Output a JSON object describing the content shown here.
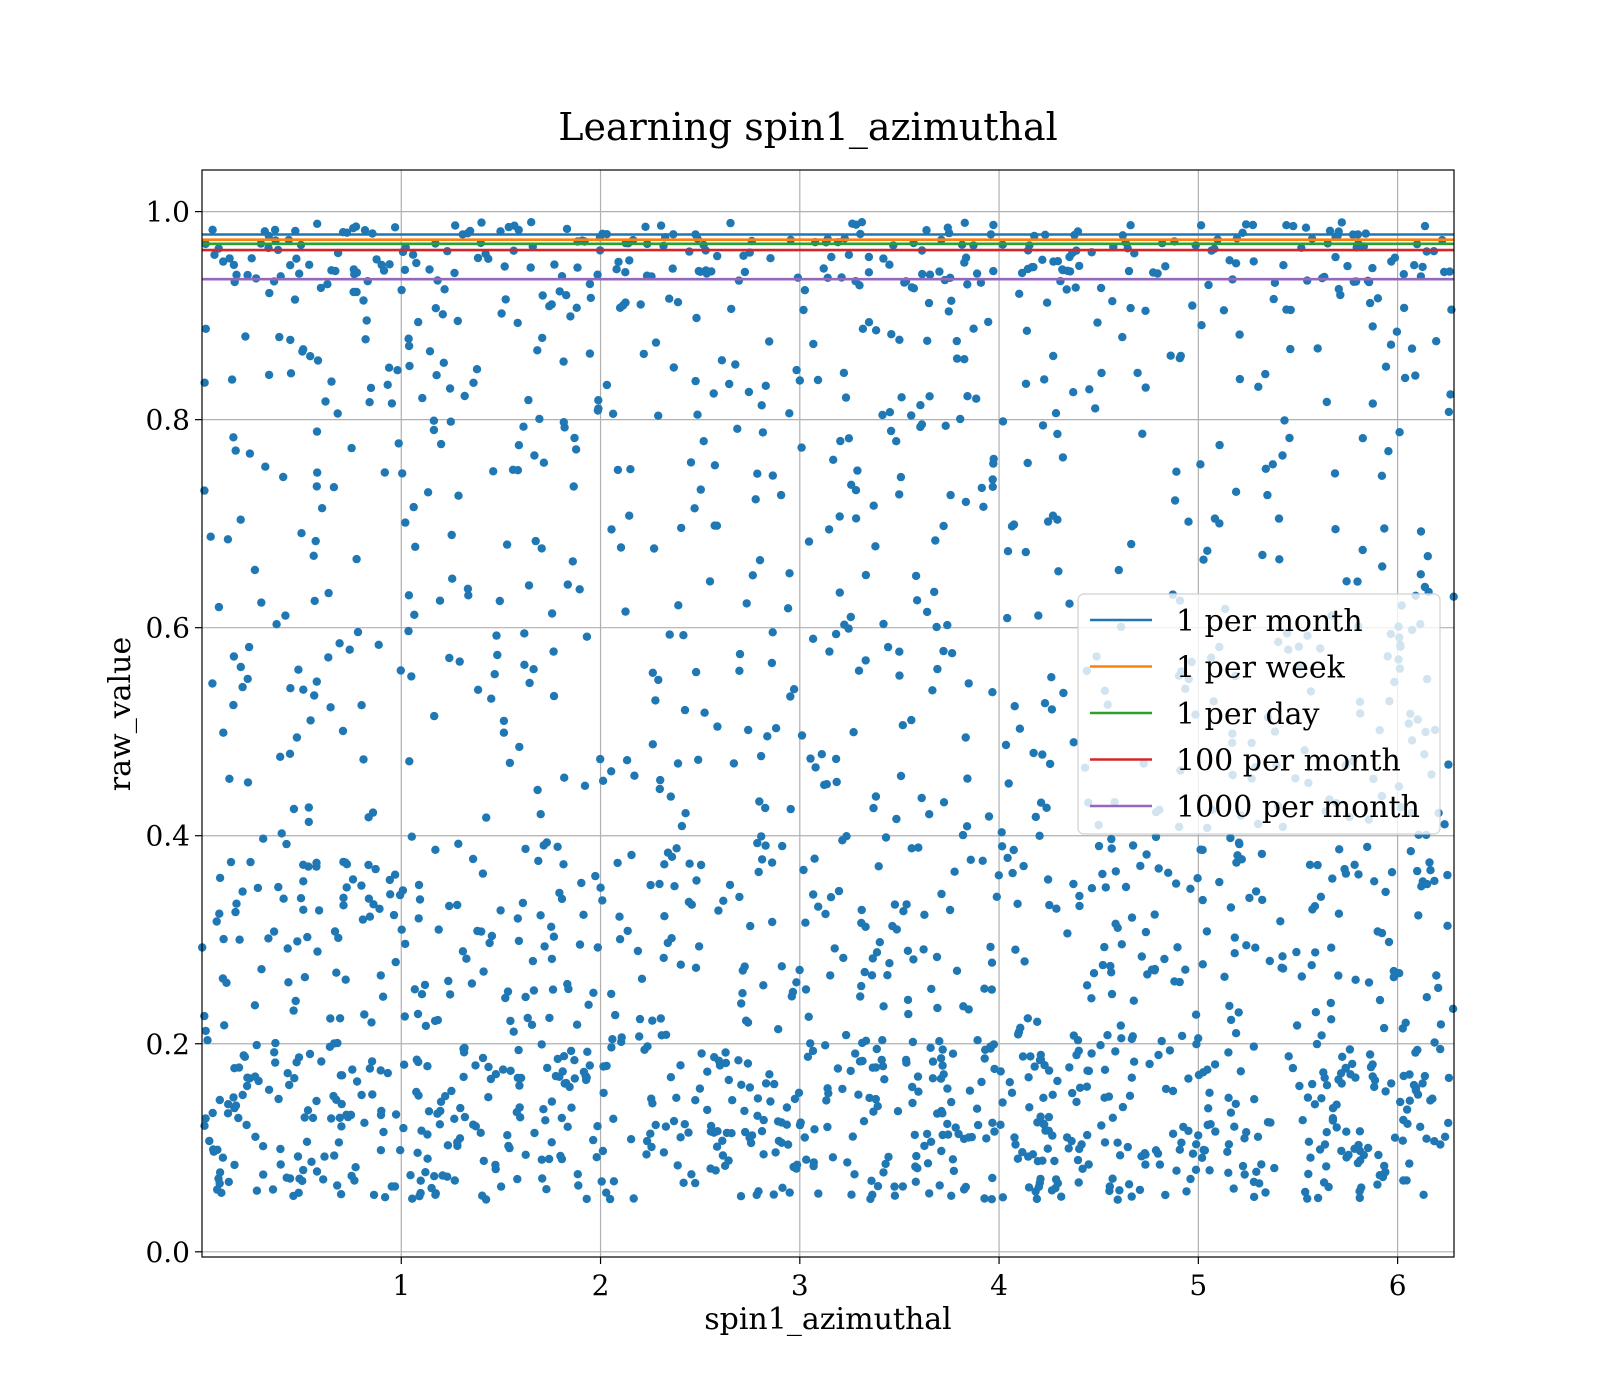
{
  "chart_data": {
    "type": "scatter",
    "title": "Learning spin1_azimuthal",
    "xlabel": "spin1_azimuthal",
    "ylabel": "raw_value",
    "xlim": [
      0.0,
      6.283
    ],
    "ylim": [
      -0.005,
      1.04
    ],
    "xticks": [
      1,
      2,
      3,
      4,
      5,
      6
    ],
    "xtick_labels": [
      "1",
      "2",
      "3",
      "4",
      "5",
      "6"
    ],
    "yticks": [
      0.0,
      0.2,
      0.4,
      0.6,
      0.8,
      1.0
    ],
    "ytick_labels": [
      "0.0",
      "0.2",
      "0.4",
      "0.6",
      "0.8",
      "1.0"
    ],
    "grid": true,
    "legend_position": "center-right",
    "scatter": {
      "color": "#1f77b4",
      "count": 2000,
      "density_profile": [
        {
          "y_range": [
            0.05,
            0.2
          ],
          "weight": 0.34
        },
        {
          "y_range": [
            0.2,
            0.4
          ],
          "weight": 0.22
        },
        {
          "y_range": [
            0.4,
            0.6
          ],
          "weight": 0.12
        },
        {
          "y_range": [
            0.6,
            0.8
          ],
          "weight": 0.1
        },
        {
          "y_range": [
            0.8,
            0.93
          ],
          "weight": 0.09
        },
        {
          "y_range": [
            0.93,
            0.99
          ],
          "weight": 0.13
        }
      ]
    },
    "series": [
      {
        "name": "1 per month",
        "y": 0.978,
        "color": "#1f77b4"
      },
      {
        "name": "1 per week",
        "y": 0.973,
        "color": "#ff7f0e"
      },
      {
        "name": "1 per day",
        "y": 0.969,
        "color": "#2ca02c"
      },
      {
        "name": "100 per month",
        "y": 0.963,
        "color": "#d62728"
      },
      {
        "name": "1000 per month",
        "y": 0.935,
        "color": "#9467bd"
      }
    ]
  }
}
